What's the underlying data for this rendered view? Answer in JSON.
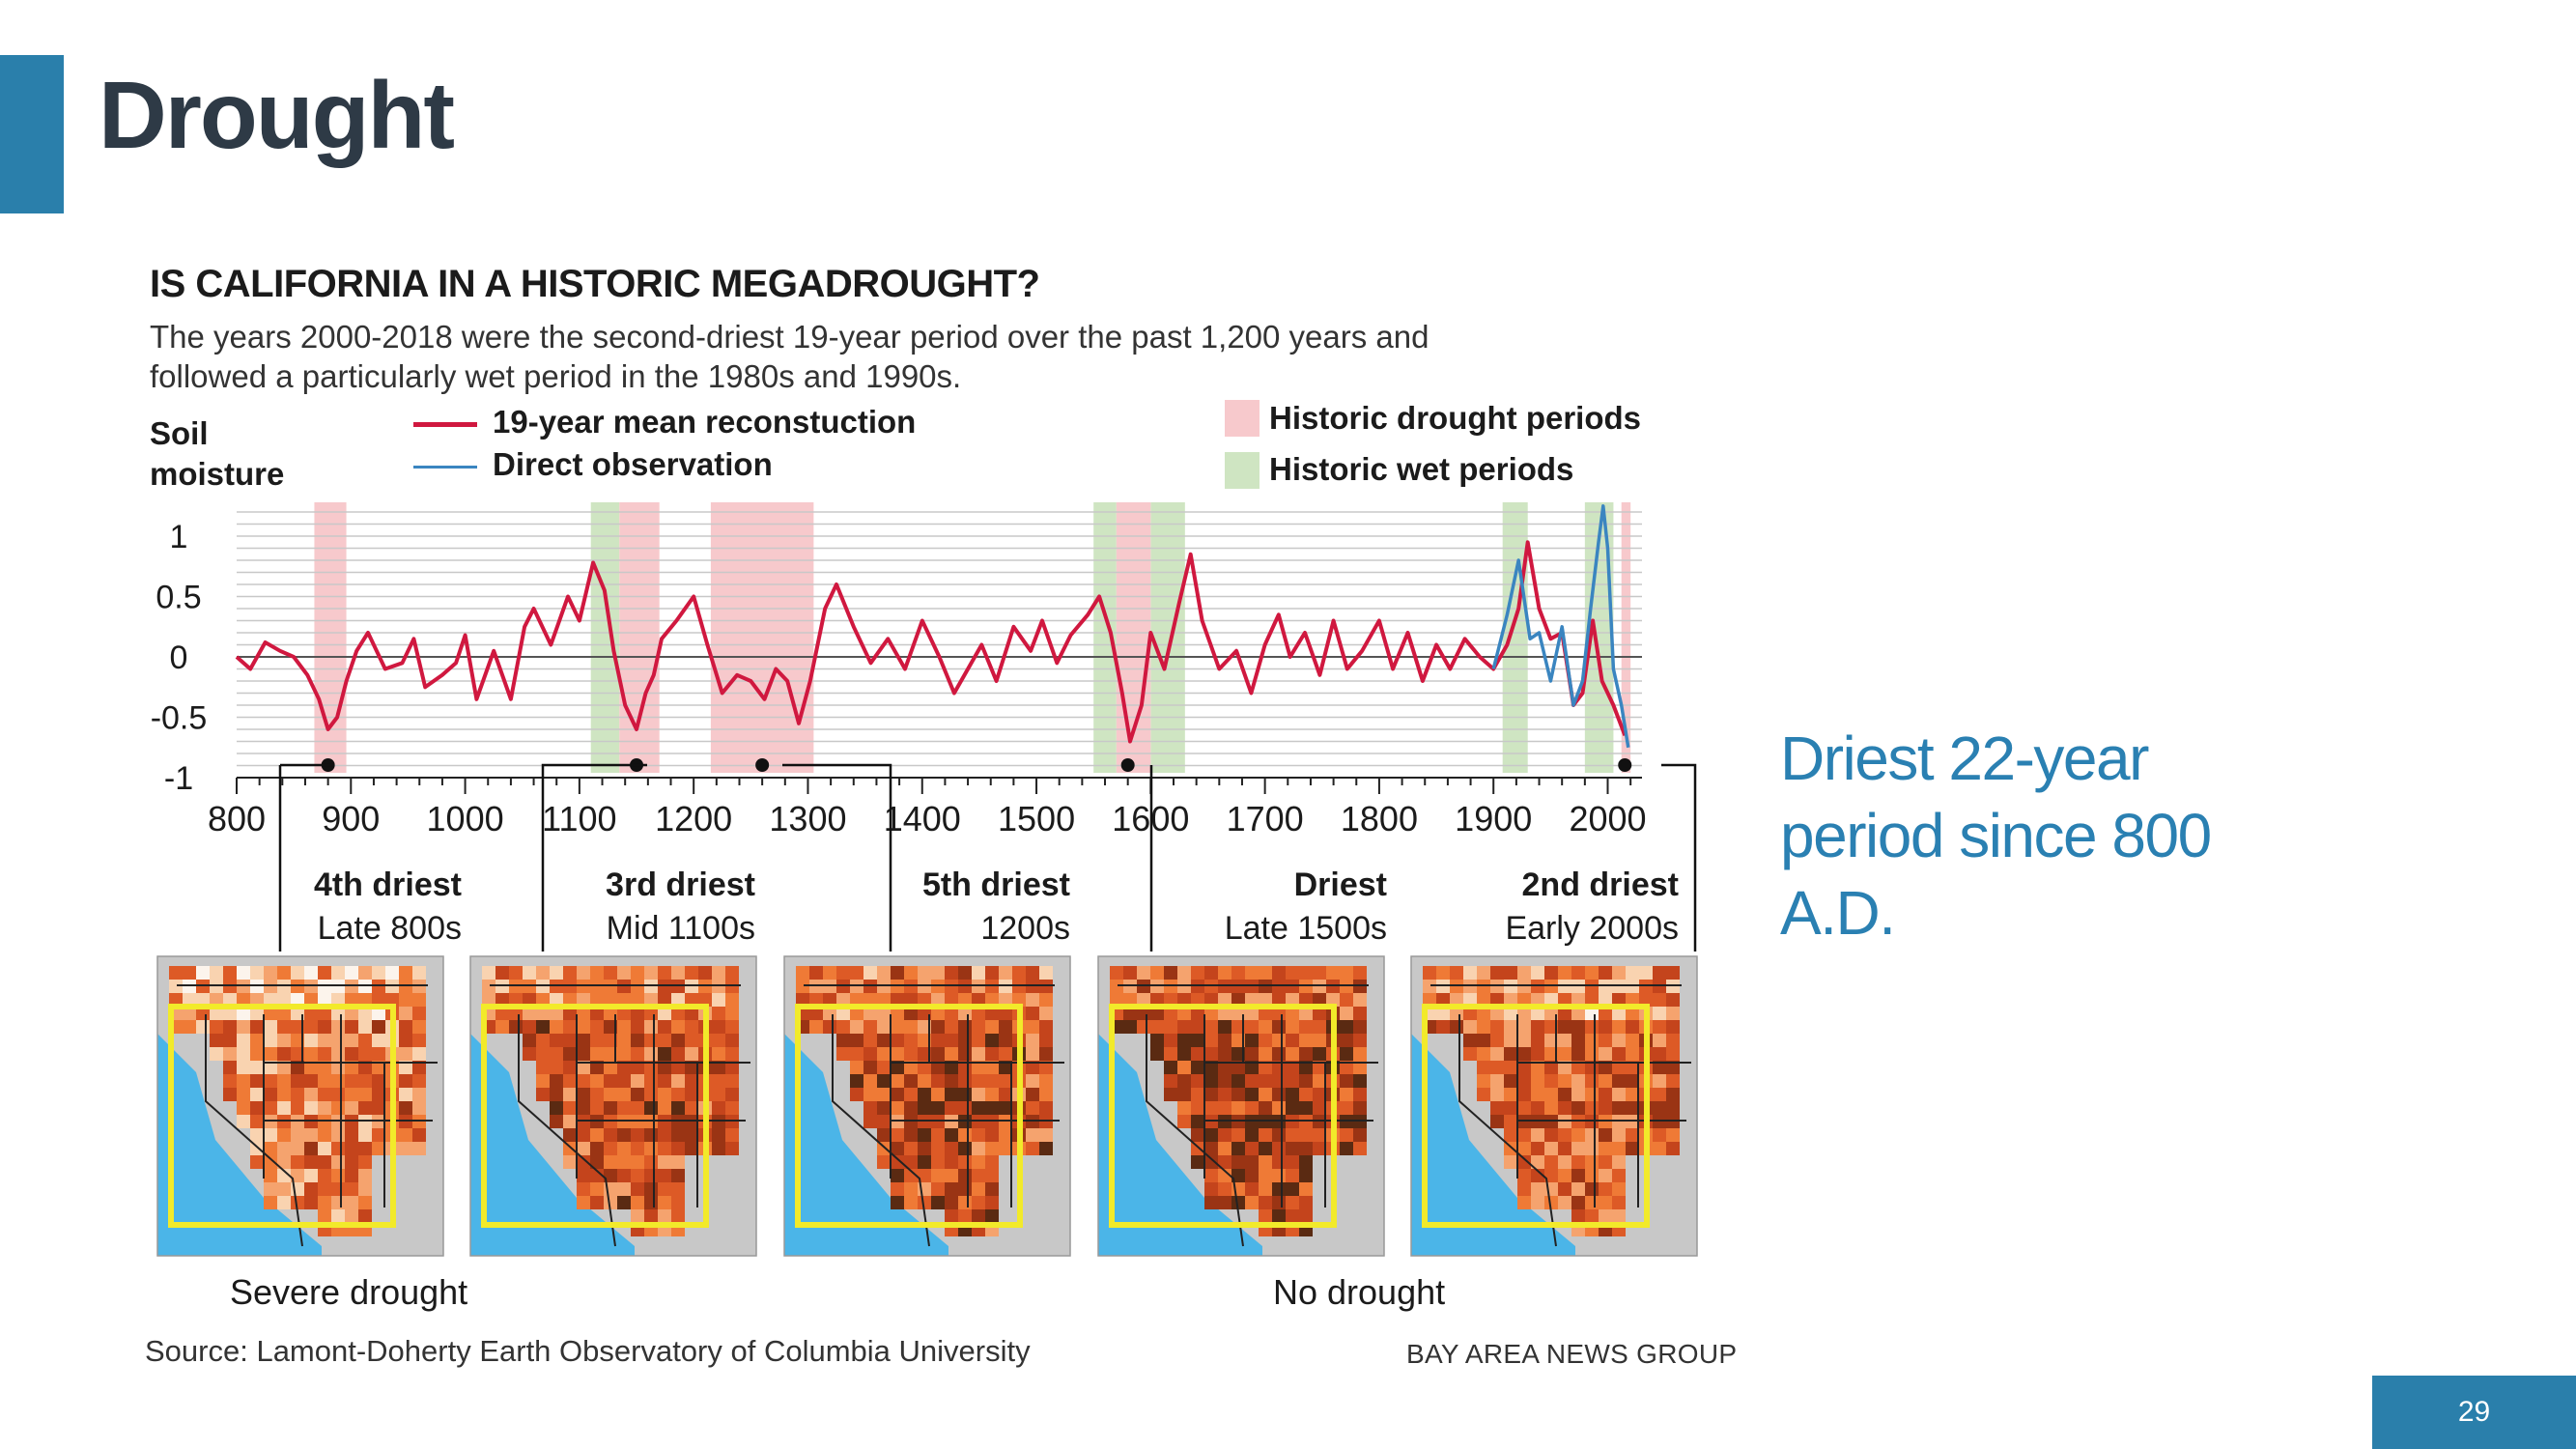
{
  "slide": {
    "title": "Drought",
    "callout": "Driest 22-year period since 800 A.D.",
    "page_number": "29",
    "accent_color": "#2a7fab"
  },
  "graphic": {
    "title": "IS CALIFORNIA IN A HISTORIC MEGADROUGHT?",
    "subtitle": "The years 2000-2018 were the second-driest 19-year period over the past 1,200 years and followed a particularly wet period in the 1980s and 1990s.",
    "ylabel_line1": "Soil",
    "ylabel_line2": "moisture",
    "legend": {
      "reconstruction": "19-year mean reconstuction",
      "observation": "Direct observation",
      "drought": "Historic drought periods",
      "wet": "Historic wet periods"
    },
    "periods": [
      {
        "title": "4th driest",
        "subtitle": "Late 800s",
        "year": 880
      },
      {
        "title": "3rd driest",
        "subtitle": "Mid 1100s",
        "year": 1150
      },
      {
        "title": "5th driest",
        "subtitle": "1200s",
        "year": 1260
      },
      {
        "title": "Driest",
        "subtitle": "Late 1500s",
        "year": 1580
      },
      {
        "title": "2nd driest",
        "subtitle": "Early 2000s",
        "year": 2015
      }
    ],
    "scale": {
      "left_label": "Severe drought",
      "right_label": "No drought",
      "colors": [
        "#5a2a12",
        "#9a3414",
        "#c4441c",
        "#dd5a26",
        "#ef7a36",
        "#f5a36e",
        "#f9d3b0",
        "#fcf4ec",
        "#7ecbc3"
      ]
    },
    "source": "Source: Lamont-Doherty Earth Observatory of Columbia University",
    "credit": "BAY AREA NEWS GROUP"
  },
  "chart_data": {
    "type": "line",
    "xlabel": "",
    "ylabel": "Soil moisture",
    "xlim": [
      800,
      2030
    ],
    "ylim": [
      -1,
      1.2
    ],
    "x_ticks": [
      800,
      900,
      1000,
      1100,
      1200,
      1300,
      1400,
      1500,
      1600,
      1700,
      1800,
      1900,
      2000
    ],
    "y_ticks": [
      1,
      0.5,
      0,
      -0.5,
      -1
    ],
    "y_tick_labels": [
      "1",
      "0.5",
      "0",
      "-0.5",
      "-1"
    ],
    "grid": true,
    "colors": {
      "reconstruction": "#d0183f",
      "observation": "#3a85c0",
      "drought": "#f7c9cc",
      "wet": "#cfe5c2"
    },
    "drought_periods": [
      [
        868,
        896
      ],
      [
        1135,
        1170
      ],
      [
        1215,
        1305
      ],
      [
        1570,
        1600
      ],
      [
        2012,
        2020
      ]
    ],
    "wet_periods": [
      [
        1110,
        1135
      ],
      [
        1550,
        1570
      ],
      [
        1600,
        1630
      ],
      [
        1908,
        1930
      ],
      [
        1980,
        2005
      ]
    ],
    "series": [
      {
        "name": "19-year mean reconstuction",
        "x": [
          800,
          812,
          825,
          838,
          850,
          862,
          872,
          880,
          888,
          896,
          905,
          915,
          930,
          945,
          955,
          965,
          980,
          992,
          1000,
          1010,
          1025,
          1040,
          1052,
          1060,
          1075,
          1090,
          1100,
          1112,
          1122,
          1130,
          1140,
          1150,
          1158,
          1165,
          1172,
          1185,
          1200,
          1212,
          1225,
          1238,
          1250,
          1262,
          1272,
          1282,
          1292,
          1302,
          1315,
          1325,
          1340,
          1355,
          1370,
          1385,
          1400,
          1415,
          1428,
          1440,
          1452,
          1465,
          1480,
          1495,
          1505,
          1518,
          1530,
          1545,
          1555,
          1565,
          1575,
          1582,
          1592,
          1600,
          1612,
          1625,
          1635,
          1645,
          1660,
          1675,
          1688,
          1700,
          1712,
          1722,
          1735,
          1748,
          1760,
          1772,
          1785,
          1800,
          1812,
          1825,
          1838,
          1850,
          1862,
          1875,
          1888,
          1900,
          1912,
          1922,
          1930,
          1940,
          1950,
          1960,
          1970,
          1978,
          1987,
          1995,
          2005,
          2015
        ],
        "y": [
          0,
          -0.1,
          0.12,
          0.05,
          0,
          -0.15,
          -0.35,
          -0.6,
          -0.5,
          -0.2,
          0.05,
          0.2,
          -0.1,
          -0.05,
          0.15,
          -0.25,
          -0.15,
          -0.05,
          0.18,
          -0.35,
          0.05,
          -0.35,
          0.25,
          0.4,
          0.1,
          0.5,
          0.3,
          0.78,
          0.55,
          0.05,
          -0.4,
          -0.6,
          -0.3,
          -0.15,
          0.15,
          0.3,
          0.5,
          0.1,
          -0.3,
          -0.15,
          -0.2,
          -0.35,
          -0.1,
          -0.2,
          -0.55,
          -0.2,
          0.4,
          0.6,
          0.25,
          -0.05,
          0.15,
          -0.1,
          0.3,
          0.0,
          -0.3,
          -0.1,
          0.1,
          -0.2,
          0.25,
          0.05,
          0.3,
          -0.05,
          0.18,
          0.35,
          0.5,
          0.2,
          -0.3,
          -0.7,
          -0.4,
          0.2,
          -0.1,
          0.45,
          0.85,
          0.3,
          -0.1,
          0.05,
          -0.3,
          0.1,
          0.35,
          0.0,
          0.2,
          -0.15,
          0.3,
          -0.1,
          0.05,
          0.3,
          -0.1,
          0.2,
          -0.2,
          0.1,
          -0.1,
          0.15,
          0.0,
          -0.1,
          0.1,
          0.4,
          0.95,
          0.4,
          0.15,
          0.2,
          -0.4,
          -0.3,
          0.3,
          -0.2,
          -0.4,
          -0.65
        ]
      },
      {
        "name": "Direct observation",
        "x": [
          1900,
          1912,
          1922,
          1932,
          1940,
          1950,
          1960,
          1970,
          1978,
          1985,
          1992,
          1996,
          2000,
          2005,
          2012,
          2018
        ],
        "y": [
          -0.1,
          0.35,
          0.8,
          0.15,
          0.2,
          -0.2,
          0.25,
          -0.4,
          -0.2,
          0.4,
          0.95,
          1.25,
          0.9,
          -0.1,
          -0.4,
          -0.75
        ]
      }
    ]
  }
}
